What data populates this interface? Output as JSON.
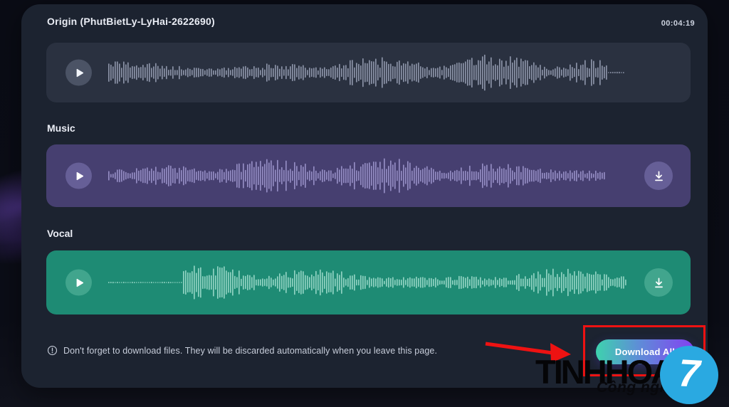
{
  "header": {
    "title": "Origin (PhutBietLy-LyHai-2622690)",
    "duration": "00:04:19"
  },
  "tracks": [
    {
      "name": "origin",
      "label": "Origin (PhutBietLy-LyHai-2622690)",
      "row_color": "#2a3140",
      "bar_color": "#8a92a6",
      "button_color": "#4b5365",
      "has_download": false,
      "seed": 7,
      "wave_width": 726,
      "quiet_start": 0.0,
      "quiet_end": 0.035
    },
    {
      "name": "music",
      "label": "Music",
      "row_color": "#463f70",
      "bar_color": "#938cc2",
      "button_color": "#665f97",
      "has_download": true,
      "seed": 13,
      "wave_width": 700,
      "quiet_start": 0.0,
      "quiet_end": 0.0
    },
    {
      "name": "vocal",
      "label": "Vocal",
      "row_color": "#1e8b74",
      "bar_color": "#8fd2c1",
      "button_color": "#41a58d",
      "has_download": true,
      "seed": 21,
      "wave_width": 730,
      "quiet_start": 0.14,
      "quiet_end": 0.0
    }
  ],
  "footer": {
    "note": "Don't forget to download files. They will be discarded automatically when you leave this page.",
    "download_all_label": "Download All"
  },
  "annotations": {
    "highlight_color": "#ee1212"
  },
  "watermark": {
    "brand": "TINHHOA",
    "tagline": "Công nghệ",
    "badge_digit": "7",
    "badge_color": "#2aa9e1"
  }
}
